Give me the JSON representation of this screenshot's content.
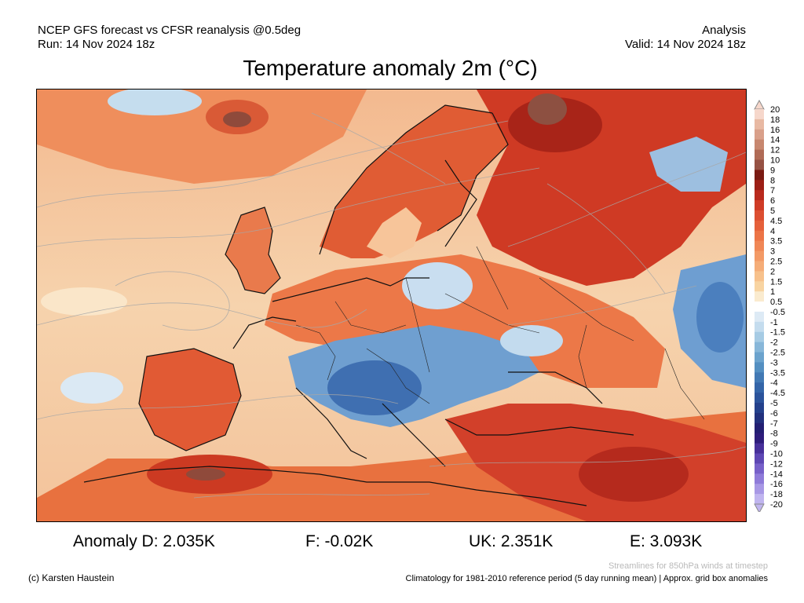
{
  "header": {
    "source_line": "NCEP GFS forecast vs CFSR reanalysis @0.5deg",
    "run_line": "Run: 14 Nov 2024 18z",
    "type_line": "Analysis",
    "valid_line": "Valid: 14 Nov 2024 18z"
  },
  "title": "Temperature anomaly 2m (°C)",
  "legend": {
    "levels": [
      "20",
      "18",
      "16",
      "14",
      "12",
      "10",
      "9",
      "8",
      "7",
      "6",
      "5",
      "4.5",
      "4",
      "3.5",
      "3",
      "2.5",
      "2",
      "1.5",
      "1",
      "0.5",
      "-0.5",
      "-1",
      "-1.5",
      "-2",
      "-2.5",
      "-3",
      "-3.5",
      "-4",
      "-4.5",
      "-5",
      "-6",
      "-7",
      "-8",
      "-9",
      "-10",
      "-12",
      "-14",
      "-16",
      "-18",
      "-20"
    ],
    "colors": [
      "#f6d7cb",
      "#e8b9a3",
      "#d9a08a",
      "#c7876f",
      "#b06b56",
      "#965244",
      "#7a1b13",
      "#9c1f16",
      "#b92a1d",
      "#cf3b26",
      "#dc4e31",
      "#e5603a",
      "#ec7446",
      "#f08756",
      "#f39a66",
      "#f5ad78",
      "#f7c18c",
      "#f8d4a2",
      "#faebcf",
      "#ffffff",
      "#ddeaf5",
      "#c4dcee",
      "#a6cbe4",
      "#88b7d9",
      "#6ca3cd",
      "#548fc1",
      "#4279b4",
      "#3465a8",
      "#2b539b",
      "#24418c",
      "#22317d",
      "#231f72",
      "#2e1d7b",
      "#47309a",
      "#5e47b4",
      "#7760c9",
      "#8f7bd9",
      "#a898e5",
      "#c0b5ef"
    ]
  },
  "map": {
    "region": "Europe",
    "palette": {
      "sea_neutral": "#f6d6b4",
      "land_warm": "#e46a3c",
      "cold": "#5d8fc7",
      "coast": "#111111",
      "streamline": "#9e9e9e"
    }
  },
  "stats": {
    "d": "Anomaly D: 2.035K",
    "f": "F: -0.02K",
    "uk": "UK: 2.351K",
    "e": "E: 3.093K"
  },
  "footer": {
    "streamline_note": "Streamlines for 850hPa winds at timestep",
    "credit": "(c) Karsten Haustein",
    "climatology_note": "Climatology for 1981-2010 reference period (5 day running mean) | Approx. grid box anomalies"
  }
}
